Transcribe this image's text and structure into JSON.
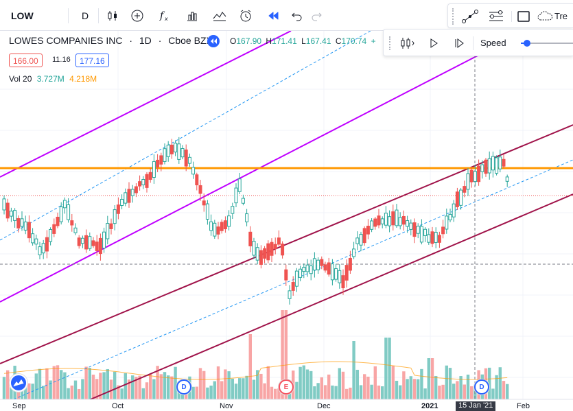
{
  "toolbar": {
    "symbol": "LOW",
    "interval": "D",
    "tools_label": "Tre"
  },
  "legend": {
    "name": "LOWES COMPANIES INC",
    "dot": "·",
    "interval": "1D",
    "exchange": "Cboe BZX",
    "o_key": "O",
    "o": "167.90",
    "h_key": "H",
    "h": "171.41",
    "l_key": "L",
    "l": "167.41",
    "c_key": "C",
    "c": "170.74",
    "plus": "+",
    "bid": "166.00",
    "spread": "11.16",
    "ask": "177.16",
    "vol_name": "Vol 20",
    "vol_value": "3.727M",
    "vol_ma": "4.218M"
  },
  "replay": {
    "speed_label": "Speed",
    "speed_level": 0.1
  },
  "time_axis": {
    "labels": [
      "Sep",
      "Oct",
      "Nov",
      "Dec",
      "2021",
      "Feb"
    ],
    "crosshair_label": "15 Jan '21"
  },
  "badges": {
    "dividend": "D",
    "earnings": "E"
  },
  "colors": {
    "up": "#26a69a",
    "down": "#ef5350",
    "vol_up": "#80cbc4",
    "vol_down": "#f8a5a5",
    "resistance": "#ff9800",
    "channel_purple": "#bf00ff",
    "channel_maroon": "#a0134a",
    "midline": "#2196f3",
    "accent": "#2962ff"
  }
}
